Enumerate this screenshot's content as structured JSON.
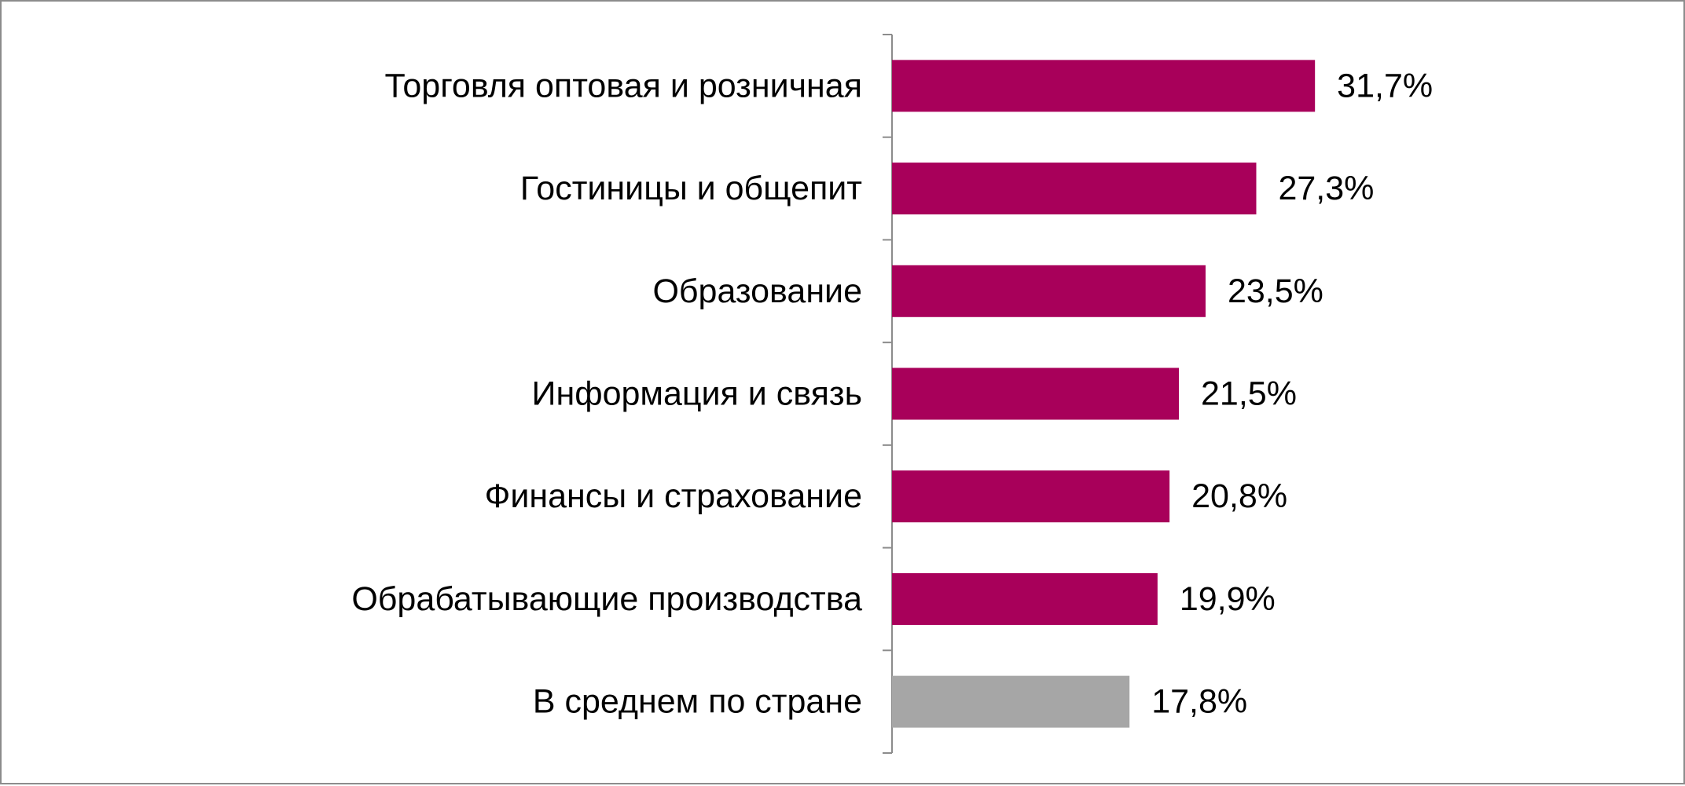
{
  "chart_data": {
    "type": "bar",
    "orientation": "horizontal",
    "categories": [
      "Торговля оптовая и розничная",
      "Гостиницы и общепит",
      "Образование",
      "Информация и связь",
      "Финансы и страхование",
      "Обрабатывающие производства",
      "В среднем по стране"
    ],
    "values": [
      31.7,
      27.3,
      23.5,
      21.5,
      20.8,
      19.9,
      17.8
    ],
    "value_labels": [
      "31,7%",
      "27,3%",
      "23,5%",
      "21,5%",
      "20,8%",
      "19,9%",
      "17,8%"
    ],
    "unit": "%",
    "xlim": [
      0,
      44
    ],
    "bar_colors": [
      "#a8005a",
      "#a8005a",
      "#a8005a",
      "#a8005a",
      "#a8005a",
      "#a8005a",
      "#a6a6a6"
    ],
    "axis_color": "#8c8c8c",
    "grid": false,
    "legend": false
  }
}
